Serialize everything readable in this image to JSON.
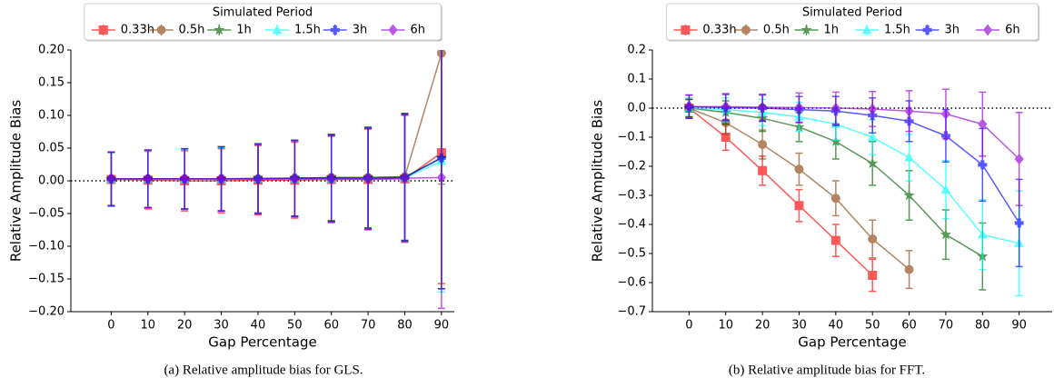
{
  "chart_data": [
    {
      "type": "errorbar-line",
      "caption": "(a) Relative amplitude bias for GLS.",
      "xlabel": "Gap Percentage",
      "ylabel": "Relative Amplitude Bias",
      "legend_title": "Simulated Period",
      "legend": "upper center",
      "reference_line": 0,
      "x": [
        0,
        10,
        20,
        30,
        40,
        50,
        60,
        70,
        80,
        90
      ],
      "xlim": [
        -11,
        93.5
      ],
      "xticks": [
        0,
        10,
        20,
        30,
        40,
        50,
        60,
        70,
        80,
        90
      ],
      "ylim": [
        -0.2,
        0.2
      ],
      "yticks": [
        {
          "value": -0.2,
          "label": "−0.20"
        },
        {
          "value": -0.15,
          "label": "−0.15"
        },
        {
          "value": -0.1,
          "label": "−0.10"
        },
        {
          "value": -0.05,
          "label": "−0.05"
        },
        {
          "value": 0,
          "label": "0.00"
        },
        {
          "value": 0.05,
          "label": "0.05"
        },
        {
          "value": 0.1,
          "label": "0.10"
        },
        {
          "value": 0.15,
          "label": "0.15"
        },
        {
          "value": 0.2,
          "label": "0.20"
        }
      ],
      "series": [
        {
          "name": "0.33h",
          "color": "#ff0000",
          "marker": "s",
          "values": [
            0.002,
            0.001,
            0,
            0,
            0.001,
            0.001,
            0.002,
            0.002,
            0.003,
            0.043
          ],
          "errors": [
            0.041,
            0.044,
            0.046,
            0.049,
            0.053,
            0.058,
            0.066,
            0.077,
            0.097,
            0.2
          ]
        },
        {
          "name": "0.5h",
          "color": "#8b4513",
          "marker": "o",
          "values": [
            0.003,
            0.003,
            0.003,
            0.003,
            0.003,
            0.004,
            0.005,
            0.005,
            0.006,
            0.195
          ],
          "errors": [
            0.041,
            0.044,
            0.046,
            0.049,
            0.053,
            0.058,
            0.066,
            0.077,
            0.097,
            0.2
          ]
        },
        {
          "name": "1h",
          "color": "#006400",
          "marker": "*",
          "values": [
            0.003,
            0.003,
            0.003,
            0.003,
            0.004,
            0.004,
            0.005,
            0.005,
            0.006,
            0.035
          ],
          "errors": [
            0.041,
            0.044,
            0.046,
            0.049,
            0.053,
            0.058,
            0.066,
            0.077,
            0.097,
            0.2
          ]
        },
        {
          "name": "1.5h",
          "color": "#00ffff",
          "marker": "^",
          "values": [
            0.002,
            0.002,
            0.002,
            0.002,
            0.003,
            0.003,
            0.003,
            0.004,
            0.004,
            0.03
          ],
          "errors": [
            0.041,
            0.044,
            0.046,
            0.049,
            0.053,
            0.058,
            0.066,
            0.077,
            0.097,
            0.2
          ]
        },
        {
          "name": "3h",
          "color": "#0000ff",
          "marker": "P",
          "values": [
            0.003,
            0.003,
            0.003,
            0.003,
            0.003,
            0.004,
            0.004,
            0.004,
            0.005,
            0.035
          ],
          "errors": [
            0.041,
            0.044,
            0.046,
            0.049,
            0.053,
            0.058,
            0.066,
            0.077,
            0.097,
            0.2
          ]
        },
        {
          "name": "6h",
          "color": "#9400d3",
          "marker": "D",
          "values": [
            0.003,
            0.003,
            0.003,
            0.003,
            0.003,
            0.003,
            0.003,
            0.003,
            0.004,
            0.005
          ],
          "errors": [
            0.041,
            0.044,
            0.046,
            0.049,
            0.053,
            0.058,
            0.066,
            0.077,
            0.097,
            0.2
          ]
        }
      ]
    },
    {
      "type": "errorbar-line",
      "caption": "(b) Relative amplitude bias for FFT.",
      "xlabel": "Gap Percentage",
      "ylabel": "Relative Amplitude Bias",
      "legend_title": "Simulated Period",
      "legend": "upper center",
      "reference_line": 0,
      "x": [
        0,
        10,
        20,
        30,
        40,
        50,
        60,
        70,
        80,
        90
      ],
      "xlim": [
        -10,
        99
      ],
      "xticks": [
        0,
        10,
        20,
        30,
        40,
        50,
        60,
        70,
        80,
        90
      ],
      "ylim": [
        -0.7,
        0.2
      ],
      "yticks": [
        {
          "value": -0.7,
          "label": "−0.7"
        },
        {
          "value": -0.6,
          "label": "−0.6"
        },
        {
          "value": -0.5,
          "label": "−0.5"
        },
        {
          "value": -0.4,
          "label": "−0.4"
        },
        {
          "value": -0.3,
          "label": "−0.3"
        },
        {
          "value": -0.2,
          "label": "−0.2"
        },
        {
          "value": -0.1,
          "label": "−0.1"
        },
        {
          "value": 0,
          "label": "0.0"
        },
        0.1,
        0.2
      ],
      "series": [
        {
          "name": "0.33h",
          "color": "#ff0000",
          "marker": "s",
          "values": [
            0,
            -0.1,
            -0.215,
            -0.335,
            -0.455,
            -0.575,
            null,
            null,
            null,
            null
          ],
          "errors": [
            0.03,
            0.045,
            0.05,
            0.055,
            0.055,
            0.055,
            null,
            null,
            null,
            null
          ]
        },
        {
          "name": "0.5h",
          "color": "#8b4513",
          "marker": "o",
          "values": [
            0,
            -0.05,
            -0.125,
            -0.21,
            -0.31,
            -0.45,
            -0.555,
            null,
            null,
            null
          ],
          "errors": [
            0.03,
            0.04,
            0.05,
            0.055,
            0.06,
            0.065,
            0.065,
            null,
            null,
            null
          ]
        },
        {
          "name": "1h",
          "color": "#006400",
          "marker": "*",
          "values": [
            0,
            -0.015,
            -0.035,
            -0.065,
            -0.115,
            -0.19,
            -0.3,
            -0.435,
            -0.51,
            null
          ],
          "errors": [
            0.03,
            0.04,
            0.045,
            0.05,
            0.06,
            0.075,
            0.085,
            0.085,
            0.115,
            null
          ]
        },
        {
          "name": "1.5h",
          "color": "#00ffff",
          "marker": "^",
          "values": [
            0,
            -0.005,
            -0.015,
            -0.03,
            -0.055,
            -0.1,
            -0.17,
            -0.28,
            -0.435,
            -0.465
          ],
          "errors": [
            0.035,
            0.04,
            0.045,
            0.05,
            0.055,
            0.06,
            0.08,
            0.1,
            0.12,
            0.18
          ]
        },
        {
          "name": "3h",
          "color": "#0000ff",
          "marker": "P",
          "values": [
            0.005,
            0.002,
            0,
            -0.005,
            -0.01,
            -0.025,
            -0.045,
            -0.095,
            -0.195,
            -0.395
          ],
          "errors": [
            0.04,
            0.045,
            0.045,
            0.045,
            0.05,
            0.06,
            0.07,
            0.09,
            0.125,
            0.15
          ]
        },
        {
          "name": "6h",
          "color": "#9400d3",
          "marker": "D",
          "values": [
            0.005,
            0.005,
            0.003,
            0.002,
            0,
            -0.003,
            -0.01,
            -0.02,
            -0.055,
            -0.175
          ],
          "errors": [
            0.04,
            0.045,
            0.045,
            0.05,
            0.055,
            0.06,
            0.07,
            0.085,
            0.11,
            0.16
          ]
        }
      ]
    }
  ]
}
